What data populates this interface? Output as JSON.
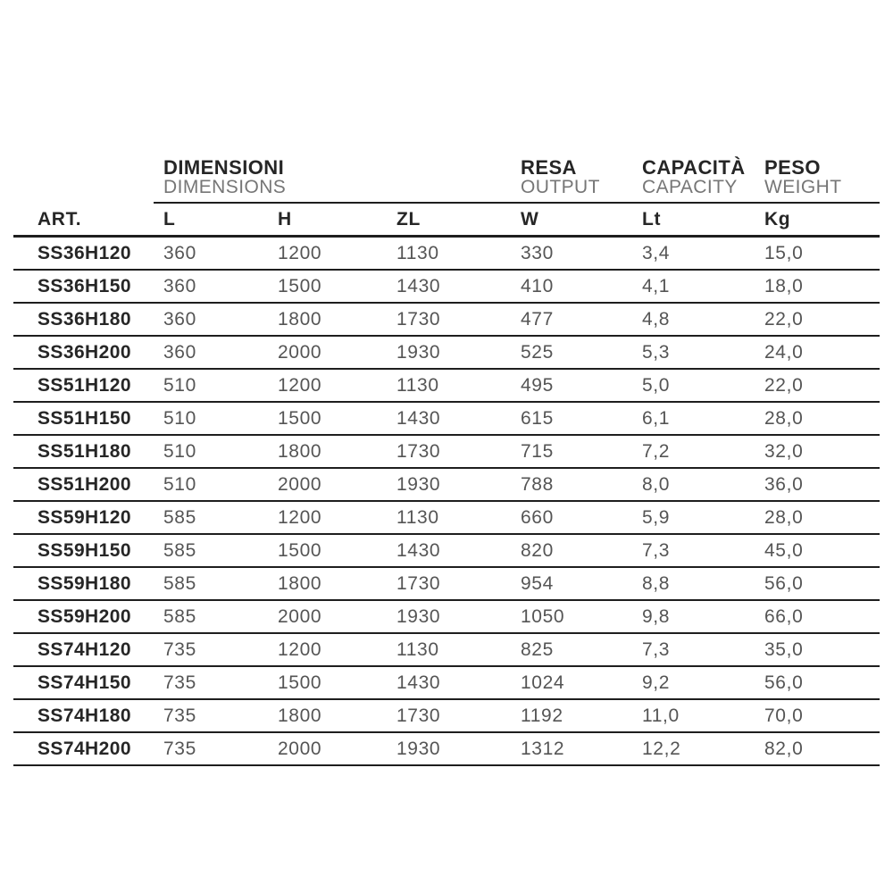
{
  "table": {
    "group_headers": [
      {
        "title": "DIMENSIONI",
        "subtitle": "DIMENSIONS"
      },
      {
        "title": "RESA",
        "subtitle": "OUTPUT"
      },
      {
        "title": "CAPACITÀ",
        "subtitle": "CAPACITY"
      },
      {
        "title": "PESO",
        "subtitle": "WEIGHT"
      }
    ],
    "columns": [
      "ART.",
      "L",
      "H",
      "ZL",
      "W",
      "Lt",
      "Kg"
    ],
    "rows": [
      [
        "SS36H120",
        "360",
        "1200",
        "1130",
        "330",
        "3,4",
        "15,0"
      ],
      [
        "SS36H150",
        "360",
        "1500",
        "1430",
        "410",
        "4,1",
        "18,0"
      ],
      [
        "SS36H180",
        "360",
        "1800",
        "1730",
        "477",
        "4,8",
        "22,0"
      ],
      [
        "SS36H200",
        "360",
        "2000",
        "1930",
        "525",
        "5,3",
        "24,0"
      ],
      [
        "SS51H120",
        "510",
        "1200",
        "1130",
        "495",
        "5,0",
        "22,0"
      ],
      [
        "SS51H150",
        "510",
        "1500",
        "1430",
        "615",
        "6,1",
        "28,0"
      ],
      [
        "SS51H180",
        "510",
        "1800",
        "1730",
        "715",
        "7,2",
        "32,0"
      ],
      [
        "SS51H200",
        "510",
        "2000",
        "1930",
        "788",
        "8,0",
        "36,0"
      ],
      [
        "SS59H120",
        "585",
        "1200",
        "1130",
        "660",
        "5,9",
        "28,0"
      ],
      [
        "SS59H150",
        "585",
        "1500",
        "1430",
        "820",
        "7,3",
        "45,0"
      ],
      [
        "SS59H180",
        "585",
        "1800",
        "1730",
        "954",
        "8,8",
        "56,0"
      ],
      [
        "SS59H200",
        "585",
        "2000",
        "1930",
        "1050",
        "9,8",
        "66,0"
      ],
      [
        "SS74H120",
        "735",
        "1200",
        "1130",
        "825",
        "7,3",
        "35,0"
      ],
      [
        "SS74H150",
        "735",
        "1500",
        "1430",
        "1024",
        "9,2",
        "56,0"
      ],
      [
        "SS74H180",
        "735",
        "1800",
        "1730",
        "1192",
        "11,0",
        "70,0"
      ],
      [
        "SS74H200",
        "735",
        "2000",
        "1930",
        "1312",
        "12,2",
        "82,0"
      ]
    ]
  },
  "colors": {
    "text_dark": "#262626",
    "text_number": "#555555",
    "text_subtitle": "#767676",
    "rule_line": "#1e1e1e",
    "background": "#ffffff"
  }
}
